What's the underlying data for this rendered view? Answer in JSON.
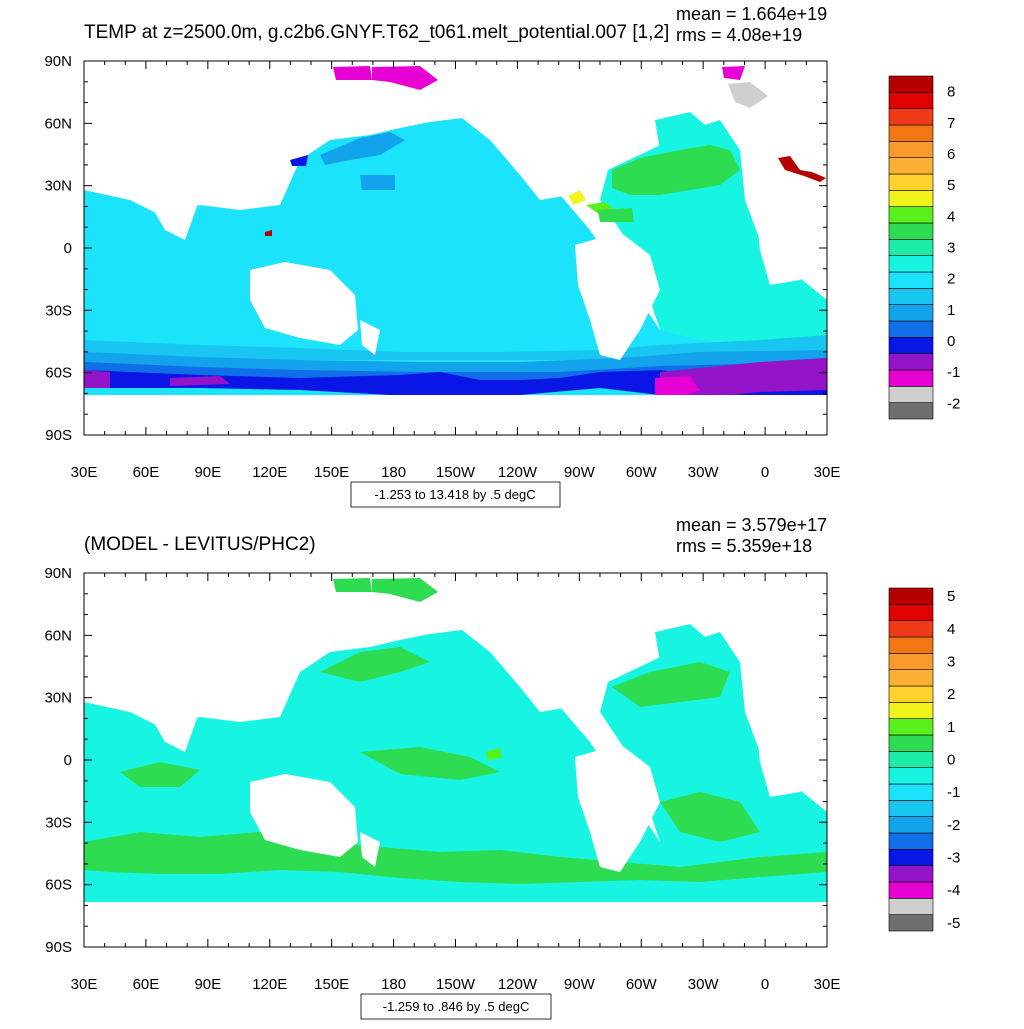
{
  "colors": {
    "palette_top": [
      "#6e6e6e",
      "#cfcfcf",
      "#e600d4",
      "#9513c8",
      "#0a16e5",
      "#0f6ee8",
      "#13a2ec",
      "#19c6f2",
      "#1be3fb",
      "#17f5e2",
      "#1cebaa",
      "#2ddc50",
      "#5af01b",
      "#f2f21c",
      "#fdd32c",
      "#fbb133",
      "#fa9a2c",
      "#f17714",
      "#f03a17",
      "#e00000",
      "#b50000"
    ],
    "palette_bottom": [
      "#6e6e6e",
      "#cfcfcf",
      "#e600d4",
      "#9513c8",
      "#0a16e5",
      "#0f6ee8",
      "#13a2ec",
      "#19c6f2",
      "#1be3fb",
      "#17f5e2",
      "#1cebaa",
      "#2ddc50",
      "#5af01b",
      "#f2f21c",
      "#fdd32c",
      "#fbb133",
      "#fa9a2c",
      "#f17714",
      "#f03a17",
      "#e00000",
      "#b50000"
    ]
  },
  "chart_data": [
    {
      "type": "heatmap",
      "title": "TEMP at z=2500.0m, g.c2b6.GNYF.T62_t061.melt_potential.007 [1,2]",
      "stats": {
        "mean": "mean = 1.664e+19",
        "rms": "rms = 4.08e+19"
      },
      "x_ticks": [
        "30E",
        "60E",
        "90E",
        "120E",
        "150E",
        "180",
        "150W",
        "120W",
        "90W",
        "60W",
        "30W",
        "0",
        "30E"
      ],
      "y_ticks": [
        "90N",
        "60N",
        "30N",
        "0",
        "30S",
        "60S",
        "90S"
      ],
      "xlim": [
        30,
        390
      ],
      "ylim": [
        -90,
        90
      ],
      "colorbar_labels": [
        "8",
        "7",
        "6",
        "5",
        "4",
        "3",
        "2",
        "1",
        "0",
        "-1",
        "-2"
      ],
      "colorbar_range": [
        -2.5,
        8.5
      ],
      "colorbar_step": 0.5,
      "contour_info": "-1.253 to 13.418 by .5 degC"
    },
    {
      "type": "heatmap",
      "title": "(MODEL - LEVITUS/PHC2)",
      "stats": {
        "mean": "mean = 3.579e+17",
        "rms": "rms = 5.359e+18"
      },
      "x_ticks": [
        "30E",
        "60E",
        "90E",
        "120E",
        "150E",
        "180",
        "150W",
        "120W",
        "90W",
        "60W",
        "30W",
        "0",
        "30E"
      ],
      "y_ticks": [
        "90N",
        "60N",
        "30N",
        "0",
        "30S",
        "60S",
        "90S"
      ],
      "xlim": [
        30,
        390
      ],
      "ylim": [
        -90,
        90
      ],
      "colorbar_labels": [
        "5",
        "4",
        "3",
        "2",
        "1",
        "0",
        "-1",
        "-2",
        "-3",
        "-4",
        "-5"
      ],
      "colorbar_range": [
        -5.25,
        5.25
      ],
      "colorbar_step": 0.5,
      "contour_info": "-1.259 to .846 by .5 degC"
    }
  ]
}
